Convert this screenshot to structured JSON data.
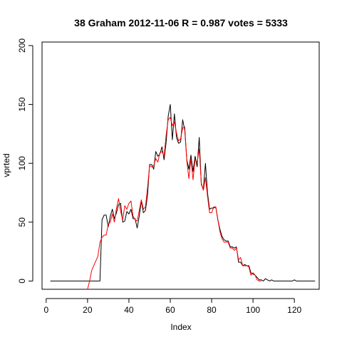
{
  "chart_data": {
    "type": "line",
    "title": "38 Graham 2012-11-06 R = 0.987 votes = 5333",
    "xlabel": "Index",
    "ylabel": "vprted",
    "xlim": [
      -2,
      132
    ],
    "ylim": [
      -7,
      203
    ],
    "xticks": [
      0,
      20,
      40,
      60,
      80,
      100,
      120
    ],
    "yticks": [
      0,
      50,
      100,
      150,
      200
    ],
    "grid": false,
    "series": [
      {
        "color": "#000000",
        "points": [
          [
            2,
            0
          ],
          [
            26,
            0
          ],
          [
            27,
            52
          ],
          [
            28,
            56
          ],
          [
            29,
            56
          ],
          [
            30,
            46
          ],
          [
            31,
            55
          ],
          [
            32,
            61
          ],
          [
            33,
            53
          ],
          [
            34,
            58
          ],
          [
            35,
            65
          ],
          [
            36,
            66
          ],
          [
            37,
            50
          ],
          [
            38,
            51
          ],
          [
            39,
            59
          ],
          [
            40,
            57
          ],
          [
            41,
            61
          ],
          [
            42,
            53
          ],
          [
            43,
            53
          ],
          [
            44,
            45
          ],
          [
            45,
            55
          ],
          [
            46,
            68
          ],
          [
            47,
            58
          ],
          [
            48,
            60
          ],
          [
            49,
            73
          ],
          [
            50,
            99
          ],
          [
            51,
            99
          ],
          [
            52,
            95
          ],
          [
            53,
            110
          ],
          [
            54,
            106
          ],
          [
            55,
            108
          ],
          [
            56,
            114
          ],
          [
            57,
            103
          ],
          [
            58,
            118
          ],
          [
            59,
            140
          ],
          [
            60,
            150
          ],
          [
            61,
            120
          ],
          [
            62,
            142
          ],
          [
            63,
            122
          ],
          [
            64,
            117
          ],
          [
            65,
            118
          ],
          [
            66,
            137
          ],
          [
            67,
            128
          ],
          [
            68,
            103
          ],
          [
            69,
            95
          ],
          [
            70,
            107
          ],
          [
            71,
            93
          ],
          [
            72,
            106
          ],
          [
            73,
            97
          ],
          [
            74,
            122
          ],
          [
            75,
            82
          ],
          [
            76,
            78
          ],
          [
            77,
            100
          ],
          [
            78,
            75
          ],
          [
            79,
            61
          ],
          [
            80,
            62
          ],
          [
            81,
            62
          ],
          [
            82,
            63
          ],
          [
            83,
            52
          ],
          [
            84,
            44
          ],
          [
            85,
            38
          ],
          [
            86,
            35
          ],
          [
            87,
            34
          ],
          [
            88,
            34
          ],
          [
            89,
            29
          ],
          [
            90,
            29
          ],
          [
            91,
            28
          ],
          [
            92,
            29
          ],
          [
            93,
            16
          ],
          [
            94,
            16
          ],
          [
            95,
            13
          ],
          [
            96,
            14
          ],
          [
            97,
            13
          ],
          [
            98,
            13
          ],
          [
            99,
            7
          ],
          [
            100,
            6
          ],
          [
            101,
            5
          ],
          [
            102,
            3
          ],
          [
            103,
            1
          ],
          [
            104,
            1
          ],
          [
            105,
            0
          ],
          [
            106,
            2
          ],
          [
            107,
            1
          ],
          [
            108,
            0
          ],
          [
            109,
            1
          ],
          [
            110,
            0
          ],
          [
            119,
            0
          ],
          [
            120,
            1
          ],
          [
            121,
            0
          ],
          [
            130,
            0
          ]
        ]
      },
      {
        "color": "#ff0000",
        "points": [
          [
            20,
            -7
          ],
          [
            21,
            0
          ],
          [
            22,
            9
          ],
          [
            23,
            13
          ],
          [
            24,
            17
          ],
          [
            25,
            21
          ],
          [
            26,
            33
          ],
          [
            27,
            37
          ],
          [
            28,
            39
          ],
          [
            29,
            39
          ],
          [
            30,
            48
          ],
          [
            31,
            50
          ],
          [
            32,
            57
          ],
          [
            33,
            50
          ],
          [
            34,
            62
          ],
          [
            35,
            70
          ],
          [
            36,
            59
          ],
          [
            37,
            52
          ],
          [
            38,
            64
          ],
          [
            39,
            61
          ],
          [
            40,
            66
          ],
          [
            41,
            68
          ],
          [
            42,
            55
          ],
          [
            43,
            52
          ],
          [
            44,
            51
          ],
          [
            45,
            60
          ],
          [
            46,
            69
          ],
          [
            47,
            61
          ],
          [
            48,
            63
          ],
          [
            49,
            79
          ],
          [
            50,
            98
          ],
          [
            51,
            97
          ],
          [
            52,
            98
          ],
          [
            53,
            104
          ],
          [
            54,
            101
          ],
          [
            55,
            109
          ],
          [
            56,
            110
          ],
          [
            57,
            106
          ],
          [
            58,
            124
          ],
          [
            59,
            137
          ],
          [
            60,
            139
          ],
          [
            61,
            132
          ],
          [
            62,
            135
          ],
          [
            63,
            126
          ],
          [
            64,
            119
          ],
          [
            65,
            121
          ],
          [
            66,
            130
          ],
          [
            67,
            131
          ],
          [
            68,
            102
          ],
          [
            69,
            87
          ],
          [
            70,
            104
          ],
          [
            71,
            86
          ],
          [
            72,
            103
          ],
          [
            73,
            101
          ],
          [
            74,
            112
          ],
          [
            75,
            83
          ],
          [
            76,
            77
          ],
          [
            77,
            88
          ],
          [
            78,
            72
          ],
          [
            79,
            58
          ],
          [
            80,
            58
          ],
          [
            81,
            63
          ],
          [
            82,
            63
          ],
          [
            83,
            52
          ],
          [
            84,
            42
          ],
          [
            85,
            36
          ],
          [
            86,
            33
          ],
          [
            87,
            33
          ],
          [
            88,
            33
          ],
          [
            89,
            28
          ],
          [
            90,
            28
          ],
          [
            91,
            26
          ],
          [
            92,
            28
          ],
          [
            93,
            18
          ],
          [
            94,
            20
          ],
          [
            95,
            13
          ],
          [
            96,
            13
          ],
          [
            97,
            13
          ],
          [
            98,
            12
          ],
          [
            99,
            5
          ],
          [
            100,
            7
          ],
          [
            101,
            5
          ],
          [
            102,
            1
          ],
          [
            103,
            0
          ],
          [
            104,
            0
          ]
        ]
      }
    ]
  }
}
